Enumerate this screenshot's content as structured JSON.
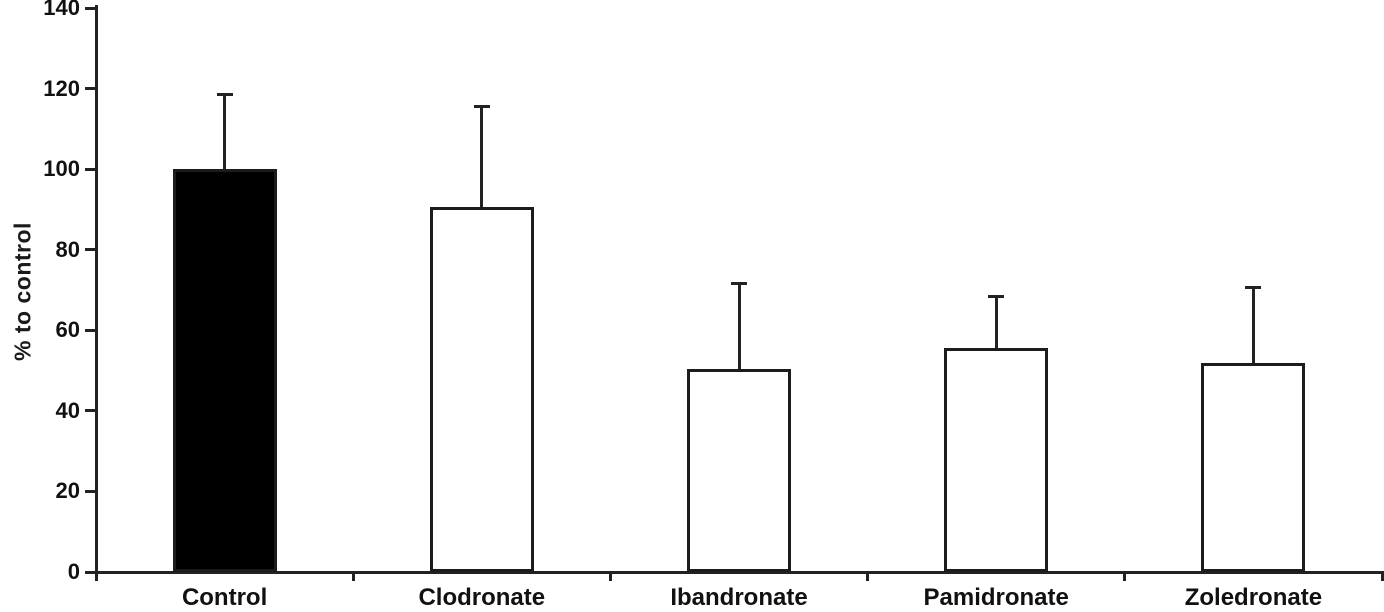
{
  "chart_data": {
    "type": "bar",
    "title": "",
    "xlabel": "",
    "ylabel": "% to control",
    "categories": [
      "Control",
      "Clodronate",
      "Ibandronate",
      "Pamidronate",
      "Zoledronate"
    ],
    "values": [
      100,
      90.5,
      50.5,
      55.5,
      52
    ],
    "errors_upper": [
      18.5,
      25,
      21,
      13,
      18.5
    ],
    "bar_fill_colors": [
      "#000000",
      "#ffffff",
      "#ffffff",
      "#ffffff",
      "#ffffff"
    ],
    "bar_border_color": "#1c1c1c",
    "axis_color": "#222222",
    "ylim": [
      0,
      140
    ],
    "yticks": [
      0,
      20,
      40,
      60,
      80,
      100,
      120,
      140
    ],
    "grid": false,
    "legend": null
  }
}
